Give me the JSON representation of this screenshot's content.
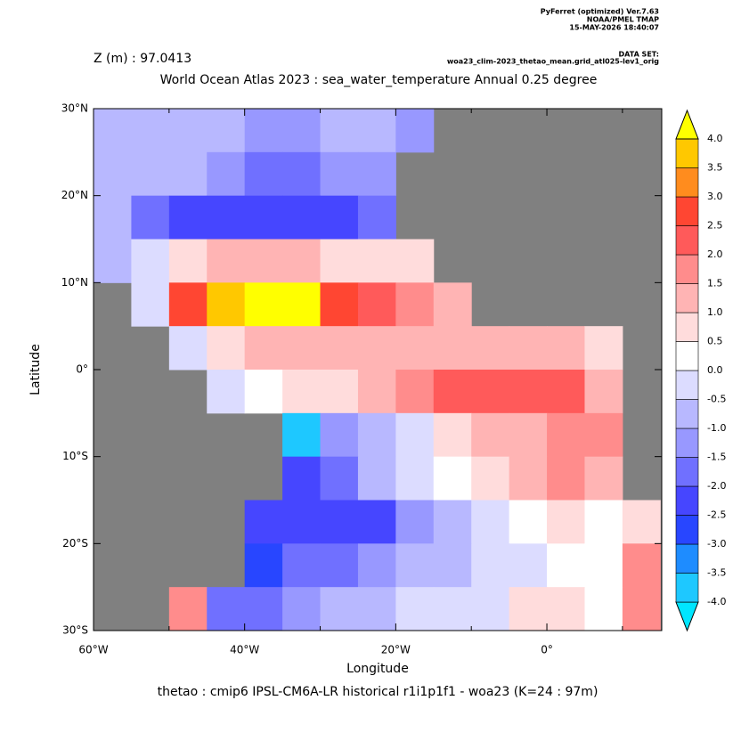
{
  "header": {
    "software": "PyFerret (optimized) Ver.7.63",
    "org": "NOAA/PMEL TMAP",
    "date": "15-MAY-2026 18:40:07",
    "dataset_label": "DATA SET:",
    "dataset": "woa23_clim-2023_thetao_mean.grid_atl025-lev1_orig"
  },
  "chart_data": {
    "type": "heatmap",
    "depth_label": "Z (m) : 97.0413",
    "title": "World Ocean Atlas 2023 : sea_water_temperature Annual  0.25 degree",
    "x_label": "Longitude",
    "y_label": "Latitude",
    "caption": "thetao : cmip6 IPSL-CM6A-LR historical r1i1p1f1 - woa23  (K=24 : 97m)",
    "xlim": [
      -60,
      15.2
    ],
    "ylim": [
      -30,
      30
    ],
    "xticks": [
      {
        "value": -60,
        "label": "60°W"
      },
      {
        "value": -50,
        "label": null
      },
      {
        "value": -40,
        "label": "40°W"
      },
      {
        "value": -30,
        "label": null
      },
      {
        "value": -20,
        "label": "20°W"
      },
      {
        "value": -10,
        "label": null
      },
      {
        "value": 0,
        "label": "0°"
      },
      {
        "value": 10,
        "label": null
      }
    ],
    "yticks": [
      {
        "value": 30,
        "label": "30°N"
      },
      {
        "value": 20,
        "label": "20°N"
      },
      {
        "value": 10,
        "label": "10°N"
      },
      {
        "value": 0,
        "label": "0°"
      },
      {
        "value": -10,
        "label": "10°S"
      },
      {
        "value": -20,
        "label": "20°S"
      },
      {
        "value": -30,
        "label": "30°S"
      }
    ],
    "land_color": "#808080",
    "x": [
      -57.5,
      -52.5,
      -47.5,
      -42.5,
      -37.5,
      -32.5,
      -27.5,
      -22.5,
      -17.5,
      -12.5,
      -7.5,
      -2.5,
      2.5,
      7.5,
      12.5
    ],
    "y": [
      27.5,
      22.5,
      17.5,
      12.5,
      7.5,
      2.5,
      -2.5,
      -7.5,
      -12.5,
      -17.5,
      -22.5,
      -27.5
    ],
    "values": [
      [
        -1,
        -1,
        -0.7,
        -0.7,
        -1.2,
        -1.2,
        -0.7,
        -0.7,
        -1.5,
        null,
        null,
        null,
        null,
        null,
        null
      ],
      [
        -0.7,
        -0.7,
        -1,
        -1.5,
        -1.7,
        -1.7,
        -1.5,
        -1.2,
        null,
        null,
        null,
        null,
        null,
        null,
        null
      ],
      [
        -1,
        -1.7,
        -2.2,
        -2.2,
        -2.2,
        -2.2,
        -2.2,
        -1.7,
        null,
        null,
        null,
        null,
        null,
        null,
        null
      ],
      [
        -0.7,
        -0.2,
        0.7,
        1.2,
        1.2,
        1.2,
        0.7,
        0.7,
        0.7,
        null,
        null,
        null,
        null,
        null,
        null
      ],
      [
        null,
        -0.2,
        2.7,
        3.7,
        4.2,
        4.2,
        2.7,
        2.2,
        1.7,
        1.2,
        null,
        null,
        null,
        null,
        null
      ],
      [
        null,
        null,
        -0.5,
        0.7,
        1.2,
        1.2,
        1.2,
        1.2,
        1.2,
        1.2,
        1.2,
        1.2,
        1.2,
        0.7,
        null
      ],
      [
        null,
        null,
        null,
        -0.2,
        0.2,
        0.7,
        0.7,
        1.2,
        1.7,
        2.2,
        2.2,
        2.2,
        2.2,
        1.2,
        null
      ],
      [
        null,
        null,
        null,
        null,
        null,
        -3.7,
        -1.2,
        -0.7,
        -0.2,
        0.7,
        1.2,
        1.2,
        1.7,
        1.7,
        null
      ],
      [
        null,
        null,
        null,
        null,
        null,
        -2.2,
        -1.7,
        -0.7,
        -0.2,
        0.2,
        0.7,
        1.2,
        1.7,
        1.2,
        null
      ],
      [
        null,
        null,
        null,
        null,
        -2.2,
        -2.2,
        -2.2,
        -2.2,
        -1.2,
        -0.7,
        -0.2,
        0.2,
        0.7,
        0.2,
        0.7
      ],
      [
        null,
        null,
        null,
        null,
        -2.7,
        -1.7,
        -1.7,
        -1.2,
        -0.7,
        -0.7,
        -0.2,
        -0.2,
        0.2,
        0.2,
        1.7
      ],
      [
        null,
        null,
        1.7,
        -1.7,
        -1.7,
        -1.2,
        -0.7,
        -0.7,
        -0.2,
        -0.2,
        -0.2,
        0.7,
        0.7,
        0.2,
        1.7
      ]
    ],
    "colorbar": {
      "levels": [
        {
          "value": -4,
          "label": "-4.0"
        },
        {
          "value": -3.5,
          "label": "-3.5"
        },
        {
          "value": -3,
          "label": "-3.0"
        },
        {
          "value": -2.5,
          "label": "-2.5"
        },
        {
          "value": -2,
          "label": "-2.0"
        },
        {
          "value": -1.5,
          "label": "-1.5"
        },
        {
          "value": -1,
          "label": "-1.0"
        },
        {
          "value": -0.5,
          "label": "-0.5"
        },
        {
          "value": 0,
          "label": "0.0"
        },
        {
          "value": 0.5,
          "label": "0.5"
        },
        {
          "value": 1,
          "label": "1.0"
        },
        {
          "value": 1.5,
          "label": "1.5"
        },
        {
          "value": 2,
          "label": "2.0"
        },
        {
          "value": 2.5,
          "label": "2.5"
        },
        {
          "value": 3,
          "label": "3.0"
        },
        {
          "value": 3.5,
          "label": "3.5"
        },
        {
          "value": 4,
          "label": "4.0"
        }
      ],
      "colors": [
        "#00e6ff",
        "#1ec8ff",
        "#1e8cff",
        "#2846ff",
        "#4646ff",
        "#7070ff",
        "#9898ff",
        "#b8b8ff",
        "#dcdcff",
        "#ffffff",
        "#ffdcdc",
        "#ffb4b4",
        "#ff8c8c",
        "#ff5a5a",
        "#ff4632",
        "#ff8c1e",
        "#ffc800",
        "#ffff00"
      ]
    }
  }
}
